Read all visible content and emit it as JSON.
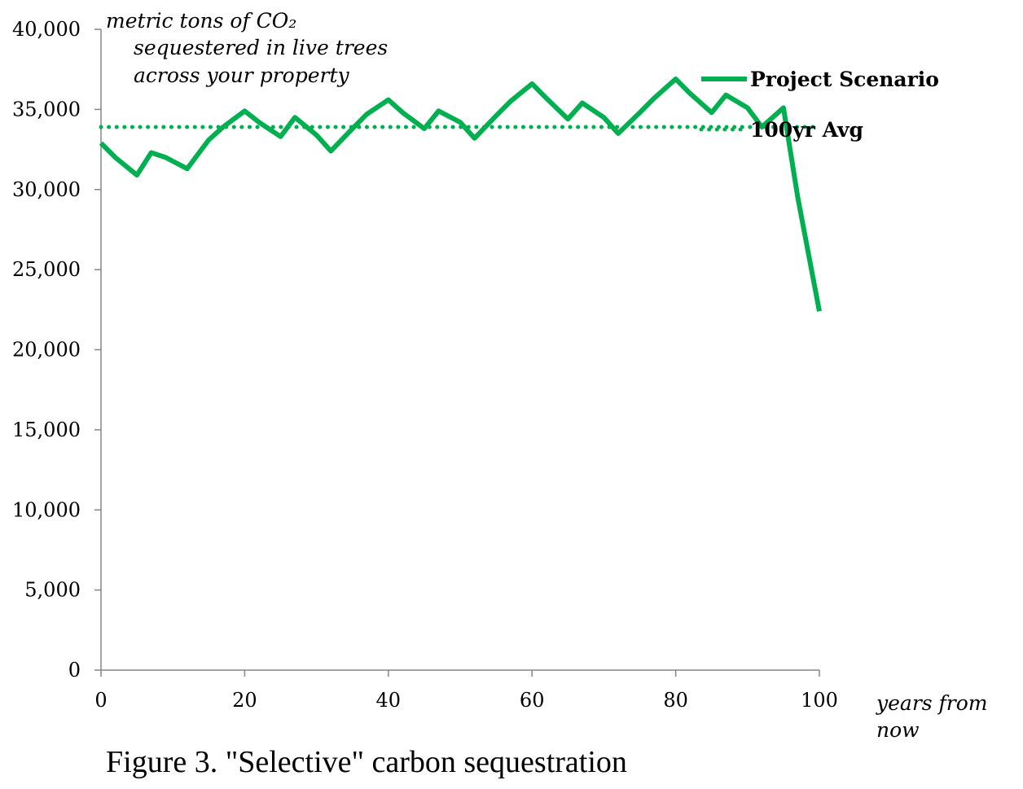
{
  "chart_data": {
    "type": "line",
    "ylabel_lines": [
      "metric tons of CO₂",
      "sequestered in live trees",
      "across your property"
    ],
    "xlabel_lines": [
      "years from",
      "now"
    ],
    "xlim": [
      0,
      100
    ],
    "ylim": [
      0,
      40000
    ],
    "x_ticks": [
      "0",
      "20",
      "40",
      "60",
      "80",
      "100"
    ],
    "y_ticks": [
      "0",
      "5,000",
      "10,000",
      "15,000",
      "20,000",
      "25,000",
      "30,000",
      "35,000",
      "40,000"
    ],
    "grid": false,
    "legend_position": "top-right",
    "series": [
      {
        "name": "Project Scenario",
        "style": "solid",
        "color": "#00b050",
        "x": [
          0,
          2,
          5,
          7,
          9,
          12,
          15,
          17,
          20,
          22,
          25,
          27,
          30,
          32,
          35,
          37,
          40,
          42,
          45,
          47,
          50,
          52,
          55,
          57,
          60,
          62,
          65,
          67,
          70,
          72,
          75,
          77,
          80,
          82,
          85,
          87,
          90,
          92,
          95,
          97,
          100
        ],
        "y": [
          32900,
          32000,
          30900,
          32300,
          32000,
          31300,
          33100,
          33900,
          34900,
          34200,
          33300,
          34500,
          33400,
          32400,
          33800,
          34700,
          35600,
          34800,
          33800,
          34900,
          34200,
          33200,
          34600,
          35500,
          36600,
          35700,
          34400,
          35400,
          34500,
          33500,
          34800,
          35700,
          36900,
          36000,
          34800,
          35900,
          35100,
          33900,
          35100,
          29500,
          22400
        ]
      },
      {
        "name": "100yr Avg",
        "style": "dotted",
        "color": "#00b050",
        "x": [
          0,
          100
        ],
        "y": [
          33900,
          33900
        ]
      }
    ]
  },
  "caption": "Figure 3. \"Selective\" carbon sequestration"
}
